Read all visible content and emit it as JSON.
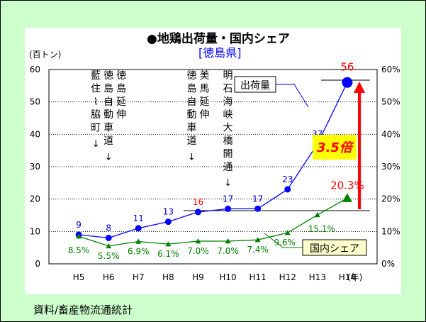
{
  "source_note": "資料/畜産物流通統計",
  "chart_data": {
    "type": "line",
    "title": "●地鶏出荷量・国内シェア",
    "subtitle": "[徳島県]",
    "y_left_label": "(百トン)",
    "x_unit_label": "(年)",
    "categories": [
      "H5",
      "H6",
      "H7",
      "H8",
      "H9",
      "H10",
      "H11",
      "H12",
      "H13",
      "H14"
    ],
    "y_left_ticks": [
      "0",
      "10",
      "20",
      "30",
      "40",
      "50",
      "60"
    ],
    "y_right_ticks": [
      "0%",
      "10%",
      "20%",
      "30%",
      "40%",
      "50%",
      "60%"
    ],
    "ylim_left": [
      0,
      60
    ],
    "ylim_right": [
      0,
      60
    ],
    "grid": true,
    "series": [
      {
        "name": "出荷量",
        "axis": "left",
        "color": "#0000ff",
        "values": [
          9,
          8,
          11,
          13,
          16,
          17,
          17,
          23,
          37,
          56
        ],
        "labels": [
          "9",
          "8",
          "11",
          "13",
          "16",
          "17",
          "17",
          "23",
          "37",
          "56"
        ],
        "label_colors": [
          "#0000cc",
          "#0000cc",
          "#0000cc",
          "#0000cc",
          "#ff0000",
          "#0000cc",
          "#0000cc",
          "#0000cc",
          "#0000cc",
          "#ff0000"
        ]
      },
      {
        "name": "国内シェア",
        "axis": "right",
        "color": "#008000",
        "values": [
          8.5,
          5.5,
          6.9,
          6.1,
          7.0,
          7.0,
          7.4,
          9.6,
          15.1,
          20.3
        ],
        "labels": [
          "8.5%",
          "5.5%",
          "6.9%",
          "6.1%",
          "7.0%",
          "7.0%",
          "7.4%",
          "9.6%",
          "15.1%",
          "20.3%"
        ],
        "label_colors": [
          "#008000",
          "#008000",
          "#008000",
          "#008000",
          "#008000",
          "#008000",
          "#008000",
          "#008000",
          "#008000",
          "#ff0000"
        ]
      }
    ],
    "annotations": [
      {
        "category": "H6",
        "lines": [
          "藍住〜脇町",
          "徳島自動車道",
          "徳島延伸"
        ]
      },
      {
        "category": "H9",
        "lines": [
          "徳島自動車道",
          "美馬延伸"
        ]
      },
      {
        "category": "H10",
        "lines": [
          "明石海峡大橋開通"
        ]
      }
    ],
    "growth_label": "3.5倍",
    "colors": {
      "accent": "#ff0000",
      "growth_box": "#ffff00",
      "legend_box": "#ffffcc"
    }
  }
}
